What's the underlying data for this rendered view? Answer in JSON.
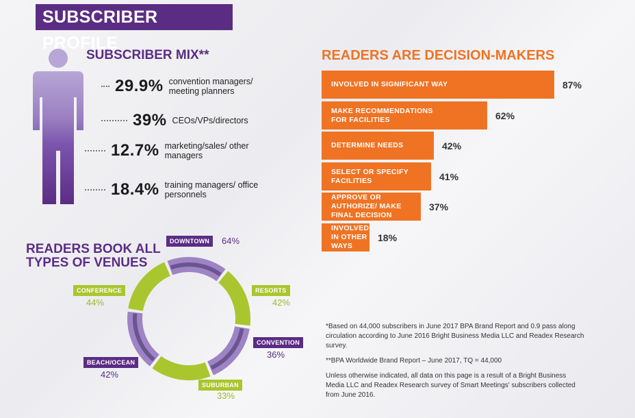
{
  "header": {
    "title": "SUBSCRIBER PROFILE"
  },
  "subscriber_mix": {
    "title": "SUBSCRIBER MIX**",
    "items": [
      {
        "pct": "29.9%",
        "label": "convention managers/ meeting planners"
      },
      {
        "pct": "39%",
        "label": "CEOs/VPs/directors"
      },
      {
        "pct": "12.7%",
        "label": "marketing/sales/ other managers"
      },
      {
        "pct": "18.4%",
        "label": "training managers/ office personnels"
      }
    ]
  },
  "venues": {
    "title_line1": "READERS BOOK ALL",
    "title_line2": "TYPES OF VENUES",
    "items": [
      {
        "label": "DOWNTOWN",
        "pct": "64%",
        "value": 64,
        "color": "#5b2c84"
      },
      {
        "label": "RESORTS",
        "pct": "42%",
        "value": 42,
        "color": "#a9c62e"
      },
      {
        "label": "CONVENTION",
        "pct": "36%",
        "value": 36,
        "color": "#5b2c84"
      },
      {
        "label": "SUBURBAN",
        "pct": "33%",
        "value": 33,
        "color": "#a9c62e"
      },
      {
        "label": "BEACH/OCEAN",
        "pct": "42%",
        "value": 42,
        "color": "#5b2c84"
      },
      {
        "label": "CONFERENCE",
        "pct": "44%",
        "value": 44,
        "color": "#a9c62e"
      }
    ]
  },
  "decision": {
    "title": "READERS ARE DECISION-MAKERS",
    "items": [
      {
        "label": "INVOLVED IN SIGNIFICANT WAY",
        "value": 87,
        "display": "87%"
      },
      {
        "label": "MAKE RECOMMENDATIONS FOR FACILITIES",
        "value": 62,
        "display": "62%"
      },
      {
        "label": "DETERMINE NEEDS",
        "value": 42,
        "display": "42%"
      },
      {
        "label": "SELECT OR SPECIFY FACILITIES",
        "value": 41,
        "display": "41%"
      },
      {
        "label": "APPROVE OR AUTHORIZE/ MAKE FINAL DECISION",
        "value": 37,
        "display": "37%"
      },
      {
        "label": "INVOLVED IN OTHER WAYS",
        "value": 18,
        "display": "18%"
      }
    ]
  },
  "notes": {
    "note1": "*Based on 44,000 subscribers in June 2017 BPA Brand Report and 0.9 pass along circulation according to June 2016 Bright Business Media LLC and Readex Research survey.",
    "note2": "**BPA Worldwide Brand Report – June 2017, TQ = 44,000",
    "note3": "Unless otherwise indicated, all data on this page is a result of a Bright Business Media LLC and Readex Research survey of Smart Meetings' subscribers collected from June 2016."
  },
  "colors": {
    "purple": "#5b2c84",
    "orange": "#ef7323",
    "green": "#a9c62e",
    "lavender": "#9e84c4"
  },
  "chart_data": [
    {
      "type": "bar",
      "title": "READERS ARE DECISION-MAKERS",
      "categories": [
        "INVOLVED IN SIGNIFICANT WAY",
        "MAKE RECOMMENDATIONS FOR FACILITIES",
        "DETERMINE NEEDS",
        "SELECT OR SPECIFY FACILITIES",
        "APPROVE OR AUTHORIZE/ MAKE FINAL DECISION",
        "INVOLVED IN OTHER WAYS"
      ],
      "values": [
        87,
        62,
        42,
        41,
        37,
        18
      ],
      "orientation": "horizontal",
      "xlim": [
        0,
        100
      ]
    },
    {
      "type": "pie",
      "title": "READERS BOOK ALL TYPES OF VENUES",
      "categories": [
        "DOWNTOWN",
        "RESORTS",
        "CONVENTION",
        "SUBURBAN",
        "BEACH/OCEAN",
        "CONFERENCE"
      ],
      "values": [
        64,
        42,
        36,
        33,
        42,
        44
      ]
    },
    {
      "type": "table",
      "title": "SUBSCRIBER MIX**",
      "categories": [
        "convention managers/ meeting planners",
        "CEOs/VPs/directors",
        "marketing/sales/ other managers",
        "training managers/ office personnels"
      ],
      "values": [
        29.9,
        39,
        12.7,
        18.4
      ]
    }
  ]
}
